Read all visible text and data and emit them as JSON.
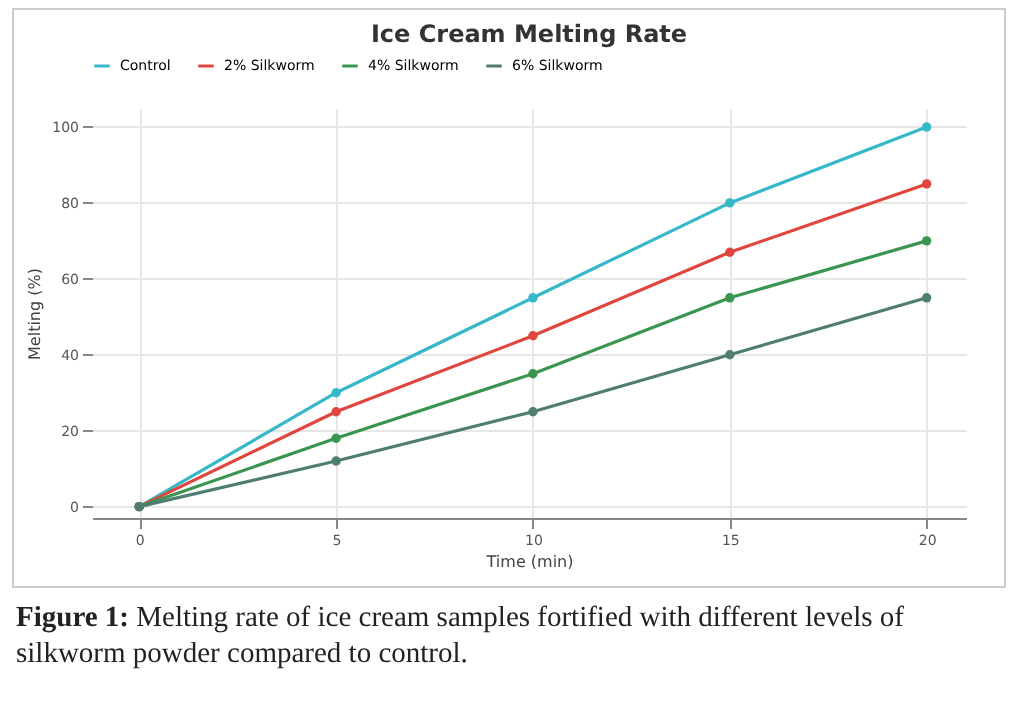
{
  "chart_data": {
    "type": "line",
    "title": "Ice Cream Melting Rate",
    "xlabel": "Time (min)",
    "ylabel": "Melting (%)",
    "x": [
      0,
      5,
      10,
      15,
      20
    ],
    "series": [
      {
        "name": "Control",
        "color": "#36b8c8",
        "values": [
          0,
          30,
          55,
          80,
          100
        ]
      },
      {
        "name": "2% Silkworm",
        "color": "#e0463e",
        "values": [
          0,
          25,
          45,
          67,
          85
        ]
      },
      {
        "name": "4% Silkworm",
        "color": "#3a9550",
        "values": [
          0,
          18,
          35,
          55,
          70
        ]
      },
      {
        "name": "6% Silkworm",
        "color": "#4f7d70",
        "values": [
          0,
          12,
          25,
          40,
          55
        ]
      }
    ],
    "xlim": [
      -1.2,
      21
    ],
    "xticks": [
      0,
      5,
      10,
      15,
      20
    ],
    "ylim": [
      -3,
      105
    ],
    "yticks": [
      0,
      20,
      40,
      60,
      80,
      100
    ],
    "grid": true,
    "legend": "top",
    "marker": "circle",
    "line_style": "solid",
    "annotations": [
      "Figure 1: Melting rate of ice cream samples fortified with different levels of silkworm powder compared to control."
    ]
  }
}
